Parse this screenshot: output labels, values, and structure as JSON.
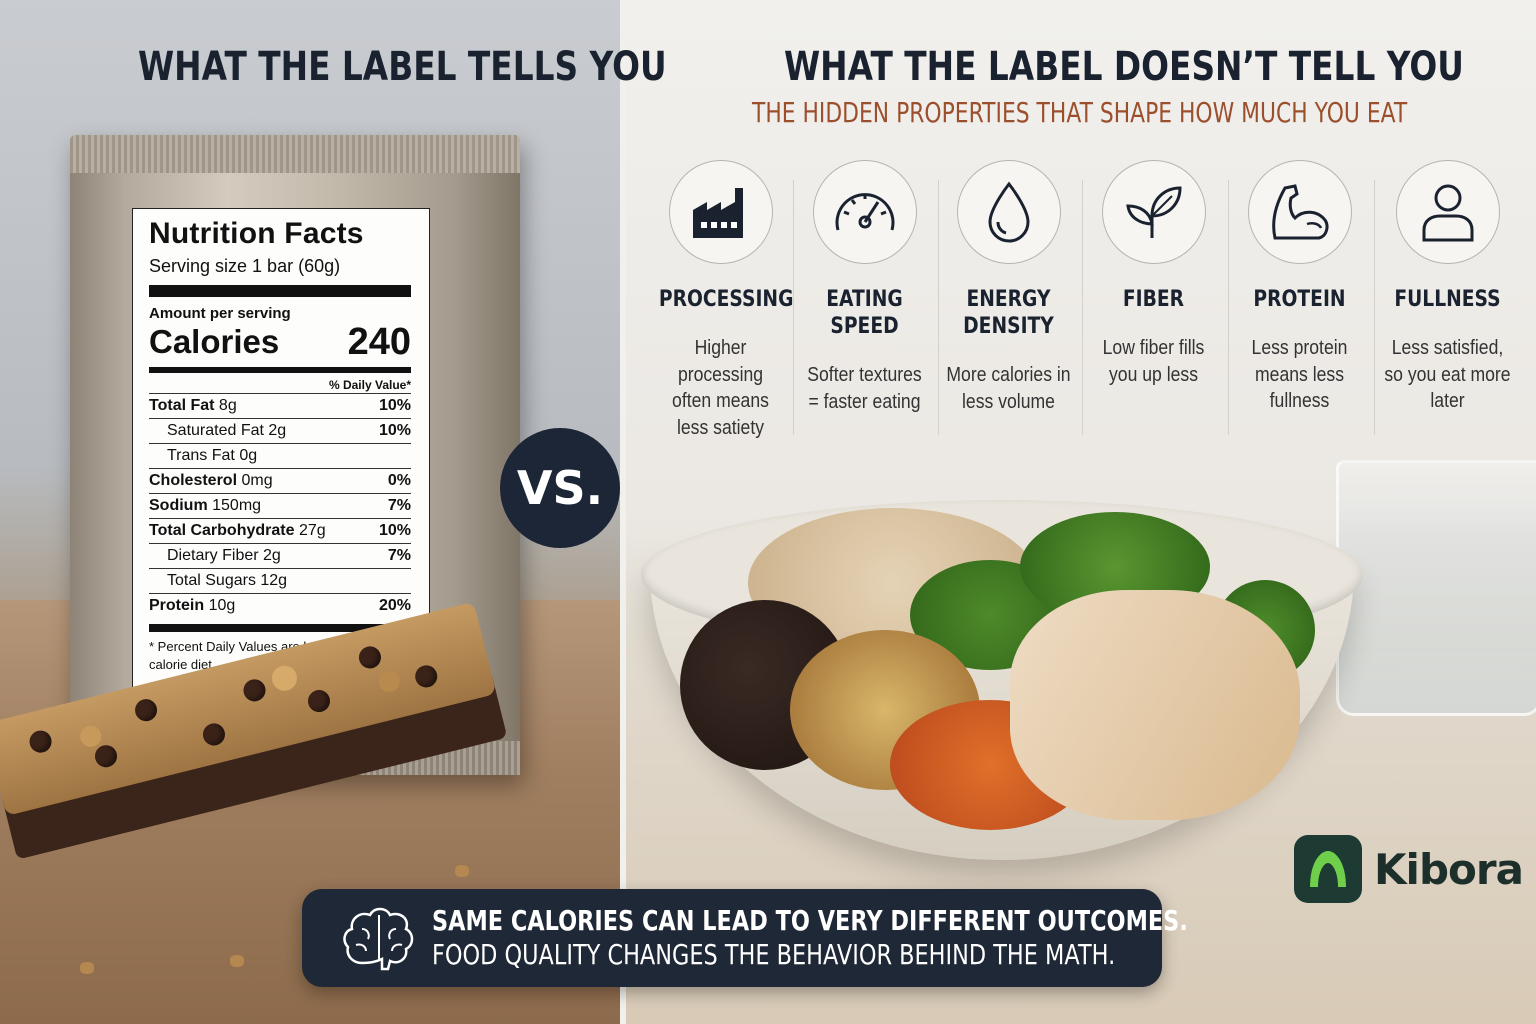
{
  "left": {
    "title": "WHAT THE LABEL TELLS YOU",
    "nutrition": {
      "title": "Nutrition Facts",
      "serving": "Serving size 1 bar (60g)",
      "amount_label": "Amount per serving",
      "calories_label": "Calories",
      "calories_value": "240",
      "dv_header": "% Daily Value*",
      "rows": [
        {
          "label_bold": "Total Fat",
          "label_rest": " 8g",
          "pct": "10%",
          "indent": false
        },
        {
          "label_bold": "",
          "label_rest": "Saturated Fat 2g",
          "pct": "10%",
          "indent": true
        },
        {
          "label_bold": "",
          "label_rest": "Trans Fat 0g",
          "pct": "",
          "indent": true
        },
        {
          "label_bold": "Cholesterol",
          "label_rest": " 0mg",
          "pct": "0%",
          "indent": false
        },
        {
          "label_bold": "Sodium",
          "label_rest": " 150mg",
          "pct": "7%",
          "indent": false
        },
        {
          "label_bold": "Total Carbohydrate",
          "label_rest": " 27g",
          "pct": "10%",
          "indent": false
        },
        {
          "label_bold": "",
          "label_rest": "Dietary Fiber 2g",
          "pct": "7%",
          "indent": true
        },
        {
          "label_bold": "",
          "label_rest": "Total Sugars 12g",
          "pct": "",
          "indent": true
        },
        {
          "label_bold": "Protein",
          "label_rest": " 10g",
          "pct": "20%",
          "indent": false
        }
      ],
      "footnote": "* Percent Daily Values are based on a 2,000 calorie diet."
    }
  },
  "vs": "VS.",
  "right": {
    "title": "WHAT THE LABEL DOESN’T TELL YOU",
    "subtitle": "THE HIDDEN PROPERTIES THAT SHAPE HOW MUCH YOU EAT",
    "properties": [
      {
        "icon": "factory-icon",
        "label": "PROCESSING",
        "desc": "Higher processing often means less satiety"
      },
      {
        "icon": "speedometer-icon",
        "label": "EATING SPEED",
        "desc": "Softer textures = faster eating"
      },
      {
        "icon": "droplet-icon",
        "label": "ENERGY DENSITY",
        "desc": "More calories in less volume"
      },
      {
        "icon": "leaf-icon",
        "label": "FIBER",
        "desc": "Low fiber fills you up less"
      },
      {
        "icon": "flexed-arm-icon",
        "label": "PROTEIN",
        "desc": "Less protein means less fullness"
      },
      {
        "icon": "person-icon",
        "label": "FULLNESS",
        "desc": "Less satisfied, so you eat more later"
      }
    ]
  },
  "logo": {
    "text": "Kibora"
  },
  "banner": {
    "line1": "SAME CALORIES CAN LEAD TO VERY DIFFERENT OUTCOMES.",
    "line2": "FOOD QUALITY CHANGES THE BEHAVIOR BEHIND THE MATH."
  }
}
